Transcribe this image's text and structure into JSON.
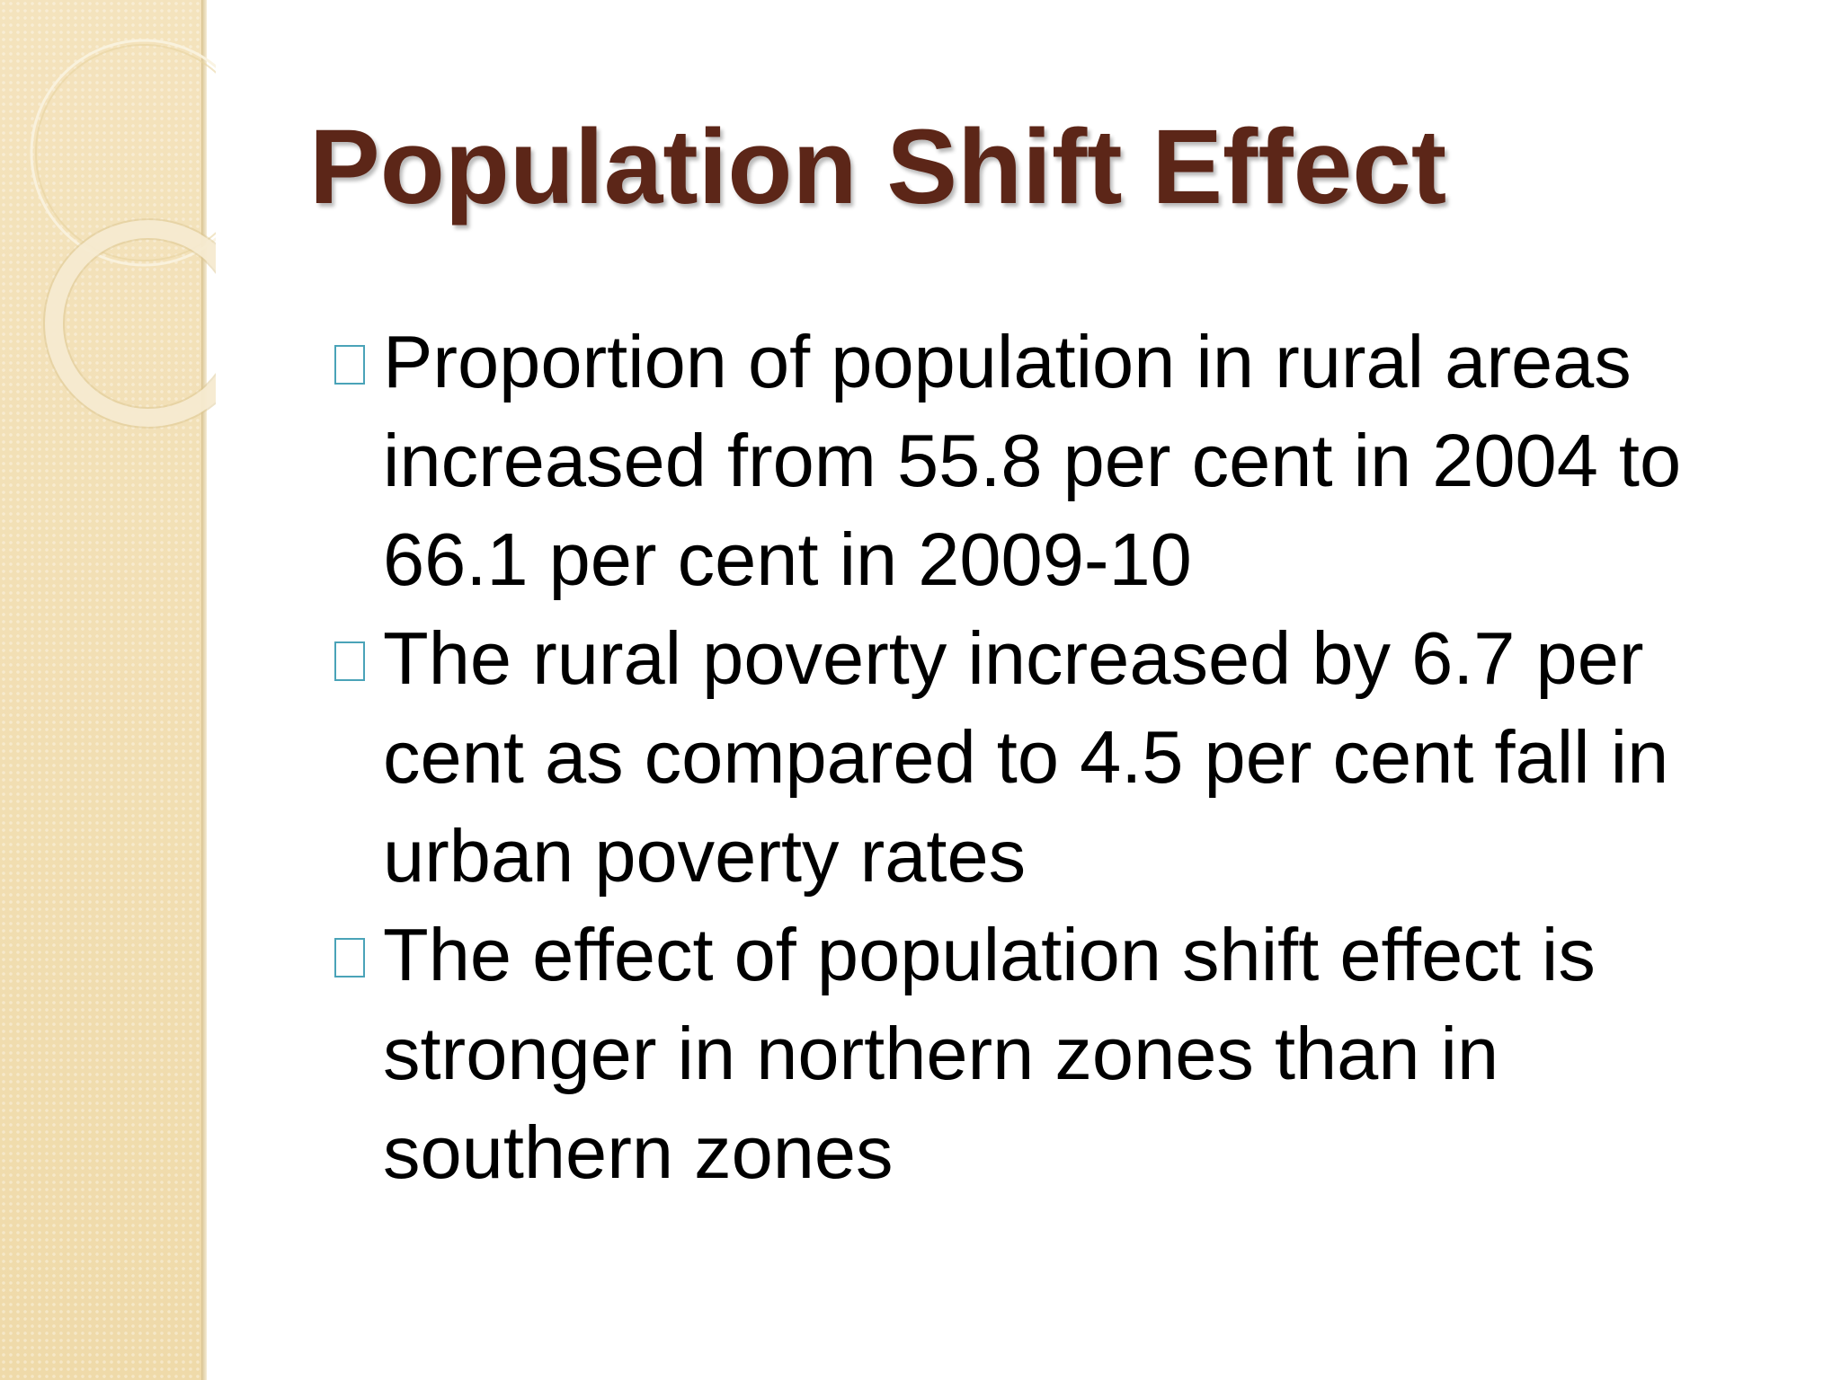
{
  "slide": {
    "title": "Population Shift Effect",
    "bullets": [
      {
        "text": "Proportion of population in rural areas increased from 55.8 per cent in 2004 to 66.1 per cent in 2009-10"
      },
      {
        "text": "The rural poverty increased by 6.7 per cent as compared to 4.5 per cent fall in urban poverty rates"
      },
      {
        "text": "The effect of population shift effect is stronger in northern zones than in southern zones"
      }
    ]
  },
  "colors": {
    "title": "#5c2618",
    "body_text": "#000000",
    "side_panel": "#f2dfb4",
    "bullet_marker": "#4aa3b8"
  },
  "icons": {
    "bullet_marker": "square-bullet-icon",
    "decoration": "decorative-rings"
  }
}
